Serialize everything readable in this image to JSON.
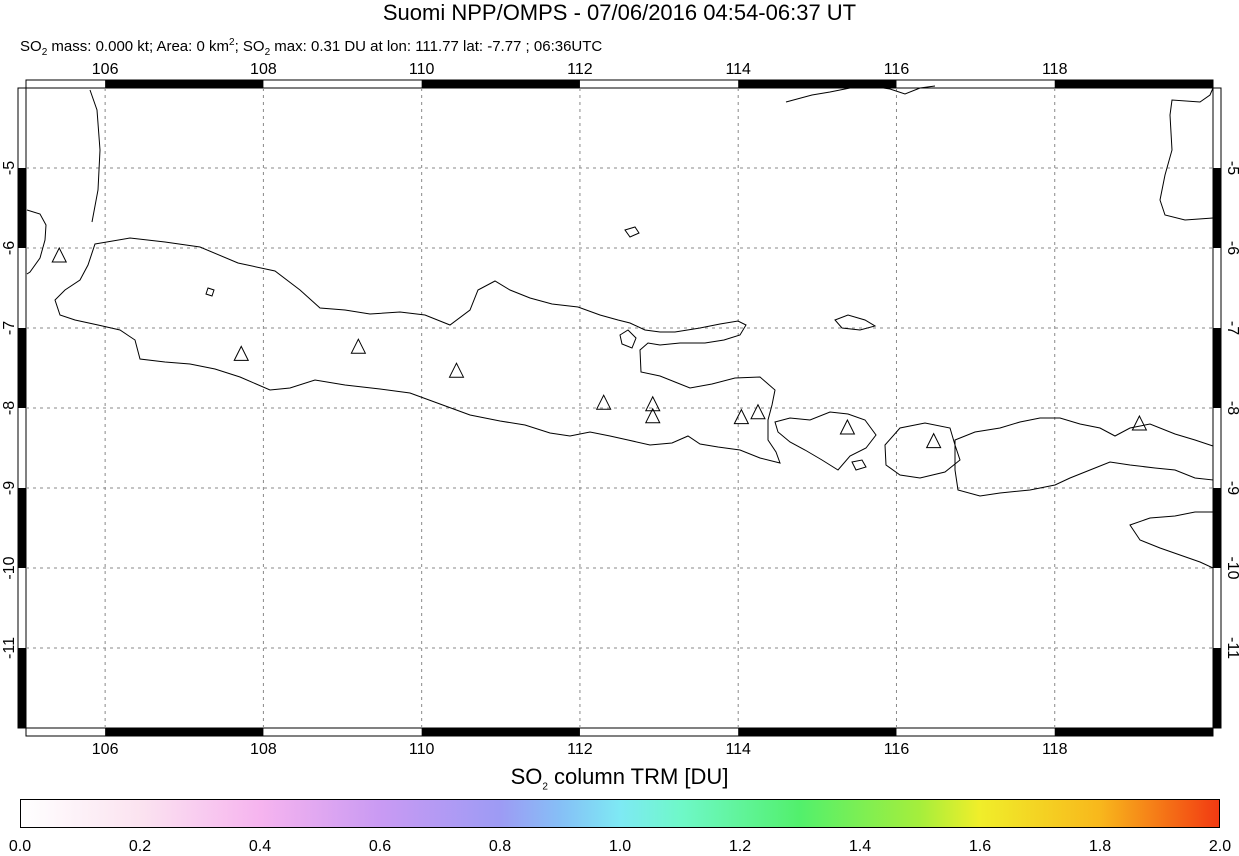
{
  "header": {
    "title": "Suomi NPP/OMPS - 07/06/2016 04:54-06:37 UT",
    "subtitle": {
      "mass_prefix": "SO",
      "mass_sub": "2",
      "mass_text": " mass: 0.000 kt; Area: 0 km",
      "area_sup": "2",
      "max_prefix": "; SO",
      "max_sub": "2",
      "max_text": " max: 0.31 DU at lon: 111.77 lat: -7.77 ; 06:36UTC"
    }
  },
  "map": {
    "lon_range": [
      105.0,
      120.0
    ],
    "lat_range": [
      -12.0,
      -4.0
    ],
    "lon_ticks": [
      "106",
      "108",
      "110",
      "112",
      "114",
      "116",
      "118"
    ],
    "lon_tick_values": [
      106,
      108,
      110,
      112,
      114,
      116,
      118
    ],
    "lat_ticks": [
      "-5",
      "-6",
      "-7",
      "-8",
      "-9",
      "-10",
      "-11"
    ],
    "lat_tick_values": [
      -5,
      -6,
      -7,
      -8,
      -9,
      -10,
      -11
    ],
    "grid": true,
    "volcanoes": [
      {
        "lon": 105.42,
        "lat": -6.1
      },
      {
        "lon": 107.72,
        "lat": -7.33
      },
      {
        "lon": 109.2,
        "lat": -7.24
      },
      {
        "lon": 110.44,
        "lat": -7.54
      },
      {
        "lon": 112.3,
        "lat": -7.94
      },
      {
        "lon": 112.92,
        "lat": -7.96
      },
      {
        "lon": 112.92,
        "lat": -8.11
      },
      {
        "lon": 114.04,
        "lat": -8.12
      },
      {
        "lon": 114.25,
        "lat": -8.06
      },
      {
        "lon": 115.38,
        "lat": -8.25
      },
      {
        "lon": 116.47,
        "lat": -8.42
      },
      {
        "lon": 119.07,
        "lat": -8.2
      }
    ]
  },
  "colorbar": {
    "title_prefix": "SO",
    "title_sub": "2",
    "title_text": " column TRM [DU]",
    "ticks": [
      "0.0",
      "0.2",
      "0.4",
      "0.6",
      "0.8",
      "1.0",
      "1.2",
      "1.4",
      "1.6",
      "1.8",
      "2.0"
    ],
    "range": [
      0.0,
      2.0
    ]
  }
}
